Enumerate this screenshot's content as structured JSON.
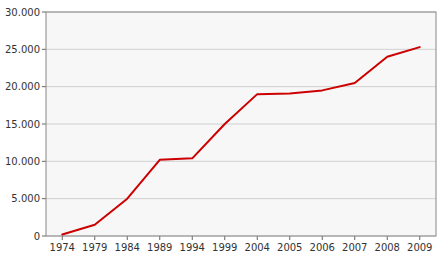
{
  "chart_data": {
    "type": "line",
    "categories": [
      "1974",
      "1979",
      "1984",
      "1989",
      "1994",
      "1999",
      "2004",
      "2005",
      "2006",
      "2007",
      "2008",
      "2009"
    ],
    "values": [
      200,
      1500,
      5000,
      10200,
      10400,
      15000,
      19000,
      19100,
      19500,
      20500,
      24000,
      25300
    ],
    "color": "#cc0000",
    "ylim": [
      0,
      30000
    ],
    "yticks": [
      0,
      {
        "value": 5000,
        "label": "5.000"
      },
      {
        "value": 10000,
        "label": "10.000"
      },
      {
        "value": 15000,
        "label": "15.000"
      },
      {
        "value": 20000,
        "label": "20.000"
      },
      {
        "value": 25000,
        "label": "25.000"
      },
      {
        "value": 30000,
        "label": "30.000"
      }
    ],
    "grid": true
  }
}
